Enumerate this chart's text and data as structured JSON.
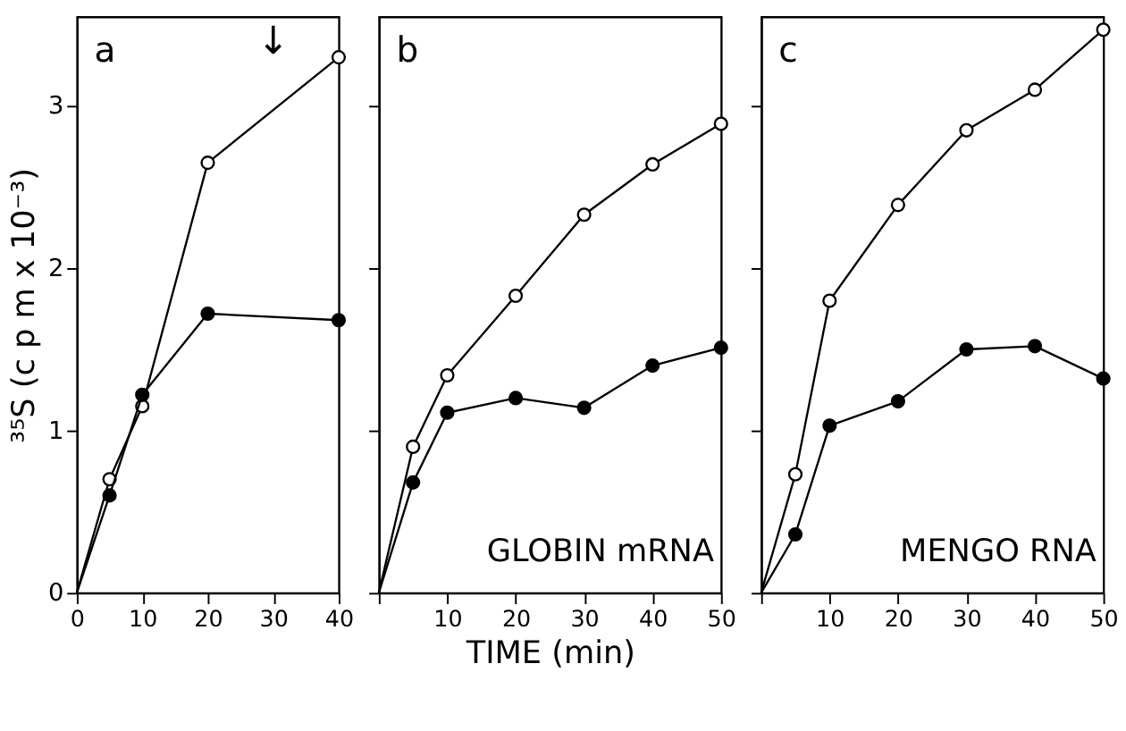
{
  "chart_data": [
    {
      "type": "line",
      "title": "a",
      "ylabel": "³⁵S (c p m x 10⁻³)",
      "xlim": [
        0,
        40
      ],
      "xticks": [
        0,
        10,
        20,
        30,
        40
      ],
      "ylim": [
        0,
        3.55
      ],
      "yticks": [
        0,
        1,
        2,
        3
      ],
      "marker": "circle",
      "grid": false,
      "legend": false,
      "annotations": [
        "↓"
      ],
      "series": [
        {
          "color": "#ffffff",
          "x": [
            0,
            5,
            10,
            20,
            40
          ],
          "values": [
            0,
            0.7,
            1.15,
            2.65,
            3.3
          ]
        },
        {
          "color": "#000000",
          "x": [
            0,
            5,
            10,
            20,
            40
          ],
          "values": [
            0,
            0.6,
            1.22,
            1.72,
            1.68
          ]
        }
      ]
    },
    {
      "type": "line",
      "title": "b",
      "xlabel": "TIME (min)",
      "xlim": [
        0,
        50
      ],
      "xticks": [
        {
          "value": 0,
          "label": null
        },
        10,
        20,
        30,
        40,
        50
      ],
      "ylim": [
        0,
        3.55
      ],
      "yticks": [
        0,
        1,
        2,
        3
      ],
      "tick_labels": "x",
      "marker": "circle",
      "grid": false,
      "legend": false,
      "annotations": [
        "GLOBIN mRNA"
      ],
      "series": [
        {
          "color": "#ffffff",
          "x": [
            0,
            5,
            10,
            20,
            30,
            40,
            50
          ],
          "values": [
            0,
            0.9,
            1.34,
            1.83,
            2.33,
            2.64,
            2.89
          ]
        },
        {
          "color": "#000000",
          "x": [
            0,
            5,
            10,
            20,
            30,
            40,
            50
          ],
          "values": [
            0,
            0.68,
            1.11,
            1.2,
            1.14,
            1.4,
            1.51
          ]
        }
      ]
    },
    {
      "type": "line",
      "title": "c",
      "xlim": [
        0,
        50
      ],
      "xticks": [
        {
          "value": 0,
          "label": null
        },
        10,
        20,
        30,
        40,
        50
      ],
      "ylim": [
        0,
        3.55
      ],
      "yticks": [
        0,
        1,
        2,
        3
      ],
      "tick_labels": "x",
      "marker": "circle",
      "grid": false,
      "legend": false,
      "annotations": [
        "MENGO RNA"
      ],
      "series": [
        {
          "color": "#ffffff",
          "x": [
            0,
            5,
            10,
            20,
            30,
            40,
            50
          ],
          "values": [
            0,
            0.73,
            1.8,
            2.39,
            2.85,
            3.1,
            3.47
          ]
        },
        {
          "color": "#000000",
          "x": [
            0,
            5,
            10,
            20,
            30,
            40,
            50
          ],
          "values": [
            0,
            0.36,
            1.03,
            1.18,
            1.5,
            1.52,
            1.32
          ]
        }
      ]
    }
  ]
}
